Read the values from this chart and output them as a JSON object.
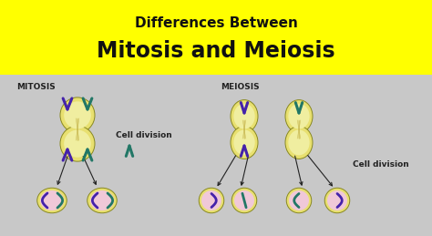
{
  "bg_top_color": "#ffff00",
  "bg_bottom_color": "#c8c8c8",
  "title_line1": "Differences Between",
  "title_line2": "Mitosis and Meiosis",
  "title_line1_fontsize": 11,
  "title_line2_fontsize": 17,
  "title_color": "#111111",
  "label_mitosis": "MITOSIS",
  "label_meiosis": "MEIOSIS",
  "label_fontsize": 6.5,
  "cell_division_text": "Cell division",
  "cell_division_fontsize": 6.5,
  "cell_outer_color": "#e8e070",
  "cell_inner_color": "#f0eea0",
  "small_cell_outer_color": "#e8e070",
  "small_cell_inner_color": "#f0c8d8",
  "chr_purple": "#4422aa",
  "chr_teal": "#227766",
  "bottom_bg": "#c8c8c8",
  "spindle_color": "#c8b850",
  "arrow_color": "#222222"
}
